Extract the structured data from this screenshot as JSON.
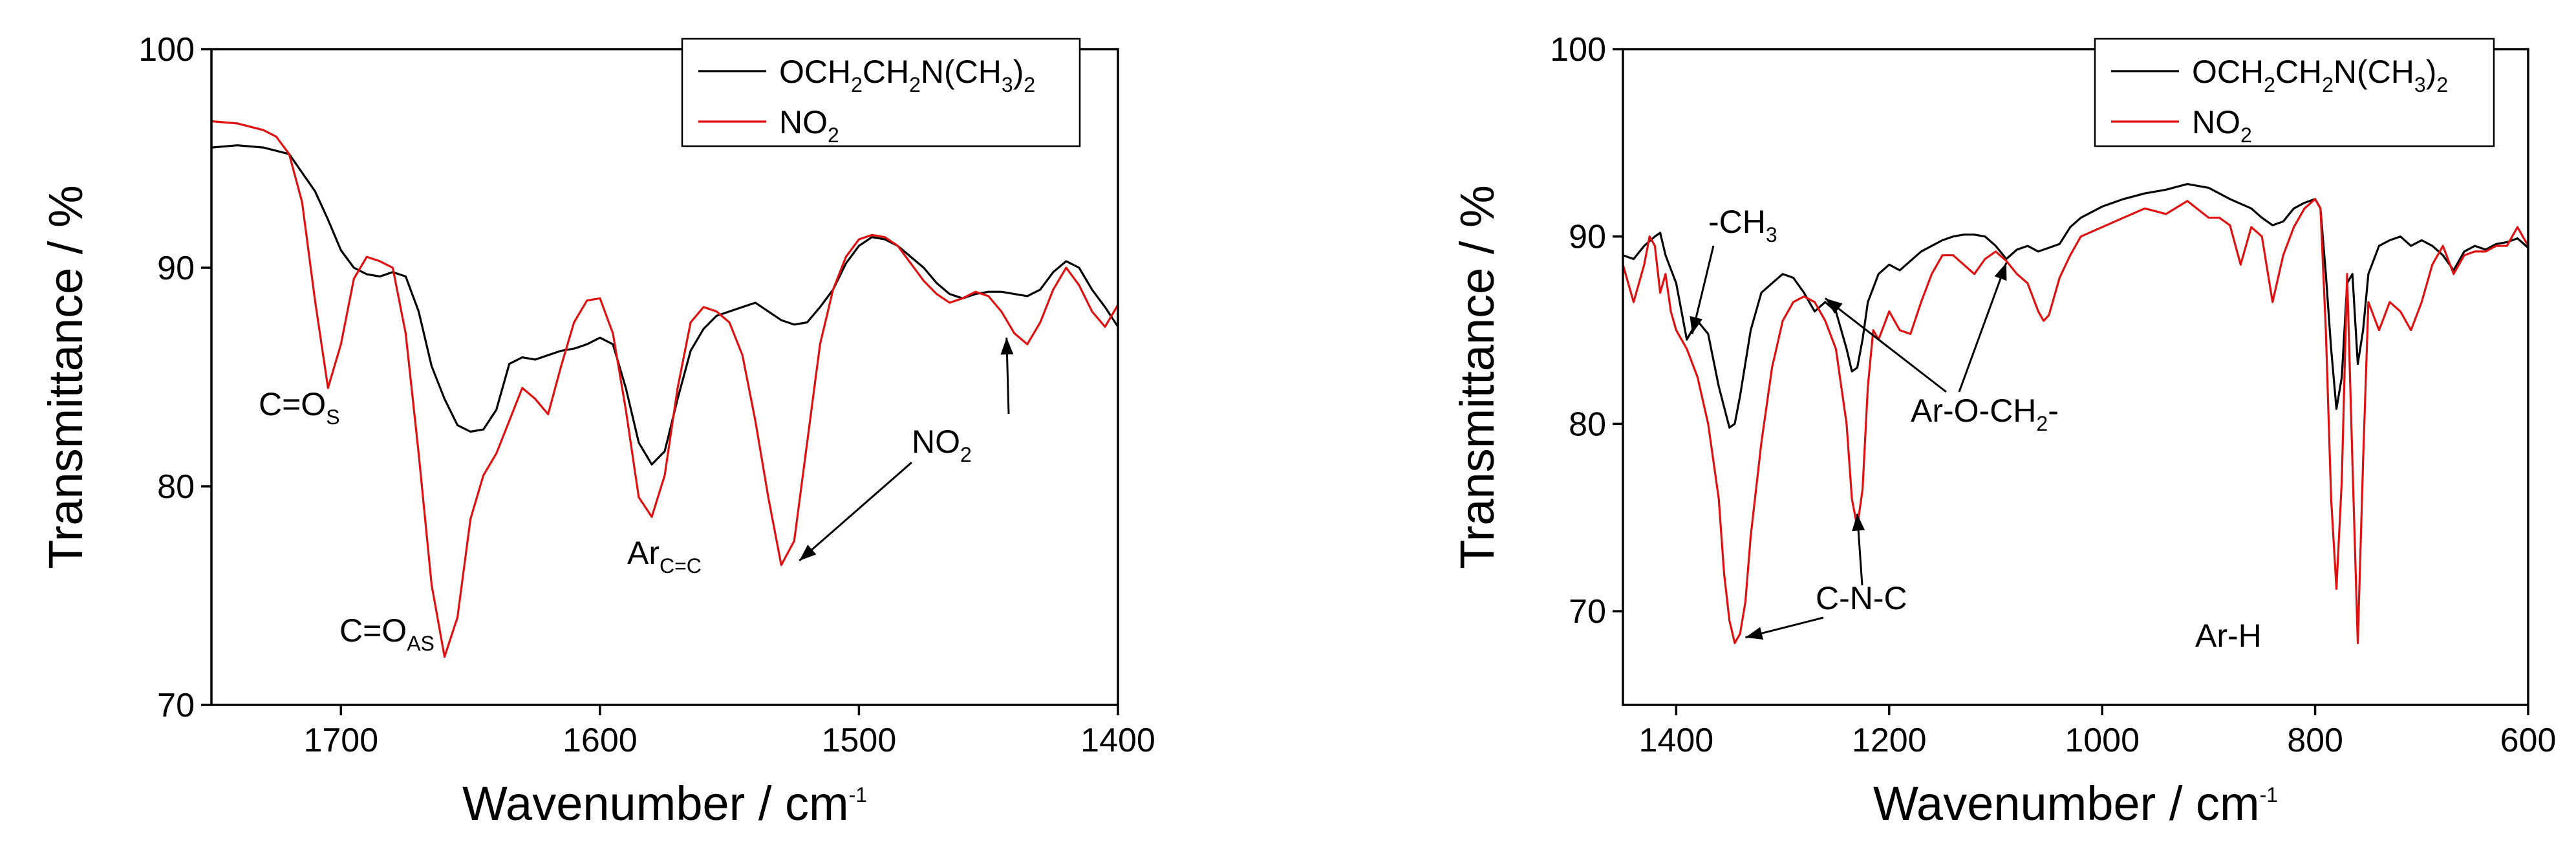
{
  "chart_data": [
    {
      "type": "line",
      "title": "",
      "xlabel": "Wavenumber / cm",
      "xlabel_sup": "-1",
      "ylabel": "Transmittance / %",
      "xlim": [
        1750,
        1400
      ],
      "ylim": [
        70,
        100
      ],
      "grid": false,
      "legend": "top-right",
      "xticks": [
        1700,
        1600,
        1500,
        1400
      ],
      "xtick_labels": [
        "1700",
        "1600",
        "1500",
        "1400"
      ],
      "yticks": [
        70,
        80,
        90,
        100
      ],
      "ytick_labels": [
        "70",
        "80",
        "90",
        "100"
      ],
      "series": [
        {
          "name": "OCH2CH2N(CH3)2",
          "color": "#000000",
          "x": [
            1750,
            1740,
            1730,
            1720,
            1710,
            1705,
            1700,
            1695,
            1690,
            1685,
            1680,
            1675,
            1670,
            1665,
            1660,
            1655,
            1650,
            1645,
            1640,
            1635,
            1630,
            1625,
            1620,
            1615,
            1610,
            1605,
            1600,
            1595,
            1590,
            1585,
            1580,
            1575,
            1570,
            1565,
            1560,
            1555,
            1550,
            1545,
            1540,
            1535,
            1530,
            1525,
            1520,
            1515,
            1510,
            1505,
            1500,
            1495,
            1490,
            1485,
            1480,
            1475,
            1470,
            1465,
            1460,
            1455,
            1450,
            1445,
            1440,
            1435,
            1430,
            1425,
            1420,
            1415,
            1410,
            1405,
            1400
          ],
          "y": [
            95.5,
            95.6,
            95.5,
            95.2,
            93.5,
            92.2,
            90.8,
            90.0,
            89.7,
            89.6,
            89.8,
            89.6,
            88.0,
            85.5,
            84.0,
            82.8,
            82.5,
            82.6,
            83.5,
            85.6,
            85.9,
            85.8,
            86.0,
            86.2,
            86.3,
            86.5,
            86.8,
            86.5,
            84.5,
            82.0,
            81.0,
            81.6,
            84.0,
            86.2,
            87.2,
            87.8,
            88.0,
            88.2,
            88.4,
            88.0,
            87.6,
            87.4,
            87.5,
            88.2,
            89.0,
            90.2,
            91.0,
            91.4,
            91.3,
            91.0,
            90.5,
            90.0,
            89.3,
            88.8,
            88.6,
            88.8,
            88.9,
            88.9,
            88.8,
            88.7,
            89.0,
            89.8,
            90.3,
            90.0,
            89.0,
            88.2,
            87.3
          ]
        },
        {
          "name": "NO2",
          "color": "#e01010",
          "x": [
            1750,
            1740,
            1730,
            1725,
            1720,
            1715,
            1710,
            1705,
            1700,
            1695,
            1690,
            1685,
            1680,
            1675,
            1670,
            1665,
            1660,
            1655,
            1650,
            1645,
            1640,
            1635,
            1630,
            1625,
            1620,
            1615,
            1610,
            1605,
            1600,
            1595,
            1590,
            1585,
            1580,
            1575,
            1570,
            1565,
            1560,
            1555,
            1550,
            1545,
            1540,
            1535,
            1530,
            1525,
            1520,
            1515,
            1510,
            1505,
            1500,
            1495,
            1490,
            1485,
            1480,
            1475,
            1470,
            1465,
            1460,
            1455,
            1450,
            1445,
            1440,
            1435,
            1430,
            1425,
            1420,
            1415,
            1410,
            1405,
            1400
          ],
          "y": [
            96.7,
            96.6,
            96.3,
            96.0,
            95.2,
            93.0,
            88.5,
            84.5,
            86.5,
            89.5,
            90.5,
            90.3,
            90.0,
            87.0,
            81.5,
            75.5,
            72.2,
            74.0,
            78.5,
            80.5,
            81.5,
            83.0,
            84.5,
            84.0,
            83.3,
            85.5,
            87.5,
            88.5,
            88.6,
            87.0,
            83.5,
            79.5,
            78.6,
            80.5,
            84.5,
            87.5,
            88.2,
            88.0,
            87.5,
            86.0,
            83.0,
            79.5,
            76.4,
            77.5,
            82.0,
            86.5,
            89.0,
            90.5,
            91.3,
            91.5,
            91.4,
            91.0,
            90.2,
            89.4,
            88.8,
            88.4,
            88.6,
            88.9,
            88.7,
            88.0,
            87.0,
            86.5,
            87.5,
            89.0,
            90.0,
            89.2,
            88.0,
            87.3,
            88.3
          ]
        }
      ],
      "annotations": [
        {
          "text": "C=O",
          "sub": "S",
          "x": 1715,
          "y": 82.5
        },
        {
          "text": "C=O",
          "sub": "AS",
          "x": 1685,
          "y": 72.5
        },
        {
          "text": "Ar",
          "sub": "C=C",
          "x": 1593,
          "y": 76.5
        },
        {
          "text": "NO",
          "sub": "2",
          "x": 1513,
          "y": 81.8
        }
      ]
    },
    {
      "type": "line",
      "title": "",
      "xlabel": "Wavenumber / cm",
      "xlabel_sup": "-1",
      "ylabel": "Transmittance / %",
      "xlim": [
        1450,
        600
      ],
      "ylim": [
        65,
        100
      ],
      "grid": false,
      "legend": "top-right",
      "xticks": [
        1400,
        1200,
        1000,
        800,
        600
      ],
      "xtick_labels": [
        "1400",
        "1200",
        "1000",
        "800",
        "600"
      ],
      "yticks": [
        70,
        80,
        90,
        100
      ],
      "ytick_labels": [
        "70",
        "80",
        "90",
        "100"
      ],
      "series": [
        {
          "name": "OCH2CH2N(CH3)2",
          "color": "#000000",
          "x": [
            1450,
            1440,
            1430,
            1420,
            1415,
            1410,
            1400,
            1395,
            1390,
            1380,
            1370,
            1360,
            1350,
            1345,
            1340,
            1330,
            1320,
            1310,
            1300,
            1290,
            1280,
            1270,
            1260,
            1250,
            1240,
            1235,
            1230,
            1225,
            1220,
            1210,
            1200,
            1190,
            1180,
            1170,
            1160,
            1150,
            1140,
            1130,
            1120,
            1110,
            1100,
            1090,
            1080,
            1070,
            1060,
            1050,
            1040,
            1030,
            1020,
            1000,
            980,
            960,
            940,
            920,
            900,
            880,
            860,
            850,
            840,
            830,
            820,
            810,
            800,
            795,
            790,
            785,
            780,
            775,
            770,
            765,
            760,
            755,
            750,
            740,
            730,
            720,
            710,
            700,
            690,
            680,
            670,
            660,
            650,
            640,
            630,
            620,
            610,
            600
          ],
          "y": [
            89.0,
            88.8,
            89.5,
            90.0,
            90.2,
            89.0,
            87.5,
            86.0,
            84.5,
            85.5,
            84.8,
            82.0,
            79.8,
            80.0,
            81.5,
            85.0,
            87.0,
            87.5,
            88.0,
            87.8,
            87.0,
            86.0,
            86.5,
            86.0,
            84.0,
            82.8,
            83.0,
            84.5,
            86.5,
            88.0,
            88.5,
            88.2,
            88.7,
            89.2,
            89.5,
            89.8,
            90.0,
            90.1,
            90.1,
            90.0,
            89.5,
            88.8,
            89.3,
            89.5,
            89.2,
            89.4,
            89.6,
            90.5,
            91.0,
            91.6,
            92.0,
            92.3,
            92.5,
            92.8,
            92.6,
            92.0,
            91.5,
            91.0,
            90.6,
            90.8,
            91.5,
            91.8,
            92.0,
            91.5,
            88.0,
            84.0,
            80.8,
            82.5,
            87.5,
            88.0,
            83.2,
            85.0,
            88.0,
            89.5,
            89.8,
            90.0,
            89.5,
            89.8,
            89.5,
            89.0,
            88.2,
            89.2,
            89.5,
            89.3,
            89.6,
            89.7,
            89.9,
            89.4
          ]
        },
        {
          "name": "NO2",
          "color": "#e01010",
          "x": [
            1450,
            1440,
            1430,
            1425,
            1420,
            1415,
            1410,
            1405,
            1400,
            1395,
            1390,
            1380,
            1370,
            1360,
            1355,
            1350,
            1345,
            1340,
            1335,
            1330,
            1320,
            1310,
            1300,
            1290,
            1280,
            1270,
            1260,
            1250,
            1240,
            1235,
            1230,
            1225,
            1220,
            1215,
            1210,
            1200,
            1190,
            1180,
            1170,
            1160,
            1150,
            1140,
            1130,
            1120,
            1110,
            1100,
            1090,
            1080,
            1070,
            1060,
            1055,
            1050,
            1040,
            1030,
            1020,
            1000,
            980,
            960,
            940,
            920,
            900,
            890,
            880,
            870,
            860,
            850,
            840,
            830,
            820,
            810,
            800,
            795,
            790,
            785,
            780,
            775,
            770,
            765,
            760,
            755,
            750,
            740,
            730,
            720,
            710,
            700,
            690,
            680,
            670,
            660,
            650,
            640,
            630,
            620,
            610,
            600
          ],
          "y": [
            88.5,
            86.5,
            88.5,
            90.0,
            89.5,
            87.0,
            88.0,
            86.0,
            85.0,
            84.5,
            84.0,
            82.5,
            80.0,
            76.0,
            72.0,
            69.5,
            68.3,
            68.8,
            70.5,
            74.0,
            79.0,
            83.0,
            85.5,
            86.5,
            86.8,
            86.5,
            85.5,
            84.0,
            80.0,
            76.0,
            74.5,
            76.5,
            82.0,
            85.0,
            84.5,
            86.0,
            85.0,
            84.8,
            86.5,
            88.0,
            89.0,
            89.0,
            88.5,
            88.0,
            88.8,
            89.2,
            88.7,
            88.0,
            87.5,
            86.0,
            85.5,
            85.8,
            87.8,
            89.0,
            90.0,
            90.5,
            91.0,
            91.5,
            91.2,
            91.9,
            91.0,
            91.0,
            90.6,
            88.5,
            90.5,
            90.0,
            86.5,
            89.0,
            90.5,
            91.5,
            92.0,
            91.5,
            85.0,
            76.0,
            71.2,
            77.0,
            88.0,
            78.0,
            68.3,
            78.0,
            86.5,
            85.0,
            86.5,
            86.0,
            85.0,
            86.5,
            88.5,
            89.5,
            88.0,
            89.0,
            89.2,
            89.2,
            89.5,
            89.5,
            90.5,
            89.5
          ]
        }
      ],
      "annotations": [
        {
          "text": "-CH",
          "sub": "3",
          "x": 1355,
          "y": 91.5
        },
        {
          "text": "C-N-C",
          "sub": "",
          "x": 1255,
          "y": 70.2
        },
        {
          "text": "Ar-O-CH",
          "sub": "2",
          "post": "-",
          "x": 1058,
          "y": 80.2
        },
        {
          "text": "Ar-H",
          "sub": "",
          "x": 828,
          "y": 67.5
        }
      ]
    }
  ]
}
